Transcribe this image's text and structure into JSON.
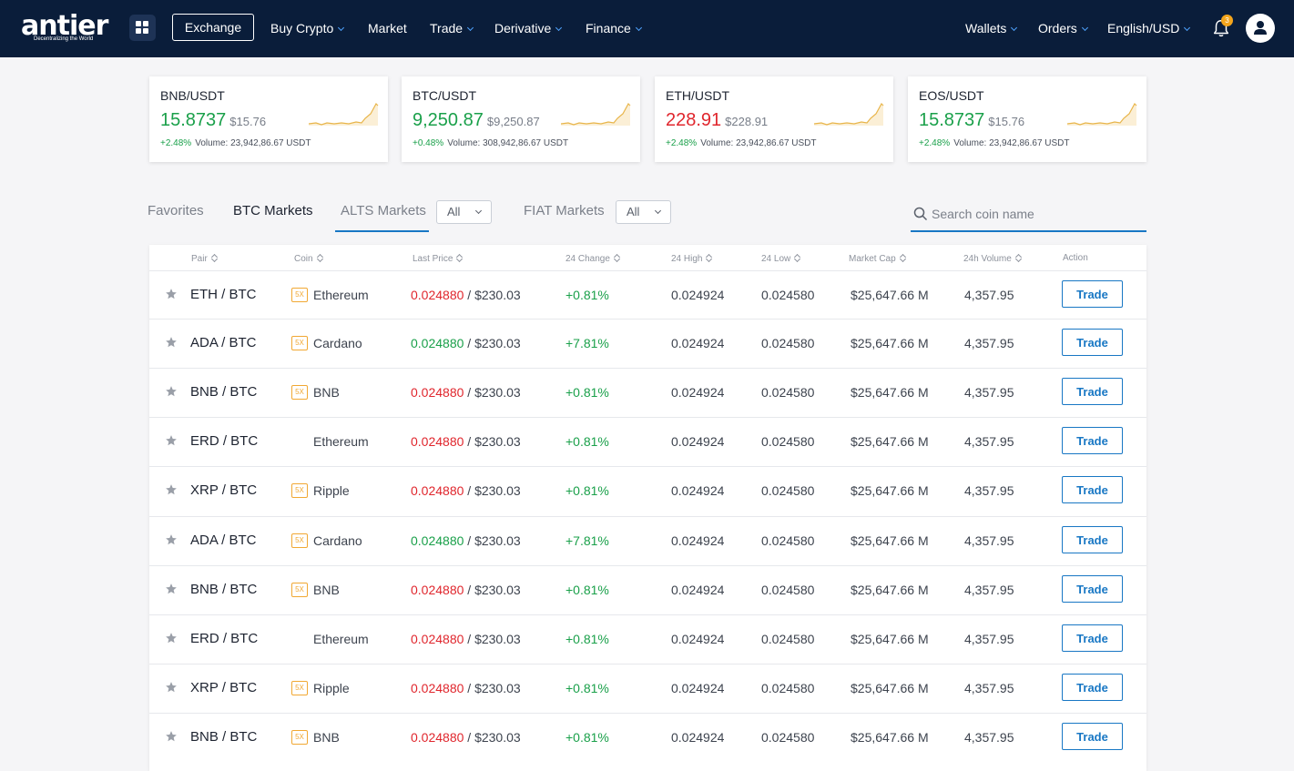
{
  "brand": {
    "name": "antier",
    "tagline": "Decentralizing the World"
  },
  "nav": {
    "exchange": "Exchange",
    "items": [
      {
        "label": "Buy Crypto",
        "dropdown": true
      },
      {
        "label": "Market",
        "dropdown": false
      },
      {
        "label": "Trade",
        "dropdown": true
      },
      {
        "label": "Derivative",
        "dropdown": true
      },
      {
        "label": "Finance",
        "dropdown": true
      }
    ],
    "right": [
      {
        "label": "Wallets",
        "dropdown": true
      },
      {
        "label": "Orders",
        "dropdown": true
      },
      {
        "label": "English/USD",
        "dropdown": true
      }
    ],
    "notification_count": "3"
  },
  "tickers": [
    {
      "pair": "BNB/USDT",
      "price": "15.8737",
      "usd": "$15.76",
      "change": "+2.48%",
      "volume": "Volume: 23,942,86.67 USDT",
      "direction": "up"
    },
    {
      "pair": "BTC/USDT",
      "price": "9,250.87",
      "usd": "$9,250.87",
      "change": "+0.48%",
      "volume": "Volume: 308,942,86.67 USDT",
      "direction": "up"
    },
    {
      "pair": "ETH/USDT",
      "price": "228.91",
      "usd": "$228.91",
      "change": "+2.48%",
      "volume": "Volume: 23,942,86.67 USDT",
      "direction": "down"
    },
    {
      "pair": "EOS/USDT",
      "price": "15.8737",
      "usd": "$15.76",
      "change": "+2.48%",
      "volume": "Volume: 23,942,86.67 USDT",
      "direction": "up"
    }
  ],
  "tabs": {
    "favorites": "Favorites",
    "btc": "BTC Markets",
    "alts": "ALTS Markets",
    "alts_filter": "All",
    "fiat": "FIAT Markets",
    "fiat_filter": "All"
  },
  "search": {
    "placeholder": "Search coin name"
  },
  "table": {
    "columns": [
      "Pair",
      "Coin",
      "Last Price",
      "24 Change",
      "24 High",
      "24 Low",
      "Market Cap",
      "24h Volume",
      "Action"
    ],
    "action_label": "Trade",
    "rows": [
      {
        "pair": "ETH / BTC",
        "leverage": "5X",
        "coin": "Ethereum",
        "last": "0.024880",
        "last_dir": "down",
        "usd": " / $230.03",
        "change": "+0.81%",
        "high": "0.024924",
        "low": "0.024580",
        "cap": "$25,647.66 M",
        "volume": "4,357.95"
      },
      {
        "pair": "ADA / BTC",
        "leverage": "5X",
        "coin": "Cardano",
        "last": "0.024880",
        "last_dir": "up",
        "usd": " / $230.03",
        "change": "+7.81%",
        "high": "0.024924",
        "low": "0.024580",
        "cap": "$25,647.66 M",
        "volume": "4,357.95"
      },
      {
        "pair": "BNB / BTC",
        "leverage": "5X",
        "coin": "BNB",
        "last": "0.024880",
        "last_dir": "down",
        "usd": " / $230.03",
        "change": "+0.81%",
        "high": "0.024924",
        "low": "0.024580",
        "cap": "$25,647.66 M",
        "volume": "4,357.95"
      },
      {
        "pair": "ERD / BTC",
        "leverage": "",
        "coin": "Ethereum",
        "last": "0.024880",
        "last_dir": "down",
        "usd": " / $230.03",
        "change": "+0.81%",
        "high": "0.024924",
        "low": "0.024580",
        "cap": "$25,647.66 M",
        "volume": "4,357.95"
      },
      {
        "pair": "XRP / BTC",
        "leverage": "5X",
        "coin": "Ripple",
        "last": "0.024880",
        "last_dir": "down",
        "usd": " / $230.03",
        "change": "+0.81%",
        "high": "0.024924",
        "low": "0.024580",
        "cap": "$25,647.66 M",
        "volume": "4,357.95"
      },
      {
        "pair": "ADA / BTC",
        "leverage": "5X",
        "coin": "Cardano",
        "last": "0.024880",
        "last_dir": "up",
        "usd": " / $230.03",
        "change": "+7.81%",
        "high": "0.024924",
        "low": "0.024580",
        "cap": "$25,647.66 M",
        "volume": "4,357.95"
      },
      {
        "pair": "BNB / BTC",
        "leverage": "5X",
        "coin": "BNB",
        "last": "0.024880",
        "last_dir": "down",
        "usd": " / $230.03",
        "change": "+0.81%",
        "high": "0.024924",
        "low": "0.024580",
        "cap": "$25,647.66 M",
        "volume": "4,357.95"
      },
      {
        "pair": "ERD / BTC",
        "leverage": "",
        "coin": "Ethereum",
        "last": "0.024880",
        "last_dir": "down",
        "usd": " / $230.03",
        "change": "+0.81%",
        "high": "0.024924",
        "low": "0.024580",
        "cap": "$25,647.66 M",
        "volume": "4,357.95"
      },
      {
        "pair": "XRP / BTC",
        "leverage": "5X",
        "coin": "Ripple",
        "last": "0.024880",
        "last_dir": "down",
        "usd": " / $230.03",
        "change": "+0.81%",
        "high": "0.024924",
        "low": "0.024580",
        "cap": "$25,647.66 M",
        "volume": "4,357.95"
      },
      {
        "pair": "BNB / BTC",
        "leverage": "5X",
        "coin": "BNB",
        "last": "0.024880",
        "last_dir": "down",
        "usd": " / $230.03",
        "change": "+0.81%",
        "high": "0.024924",
        "low": "0.024580",
        "cap": "$25,647.66 M",
        "volume": "4,357.95"
      }
    ]
  },
  "colors": {
    "navy": "#0a1d3a",
    "accent": "#1877c4",
    "up": "#1aa04a",
    "down": "#e0262d",
    "leverage": "#f1a833",
    "sparkline": "#e8b54a"
  }
}
